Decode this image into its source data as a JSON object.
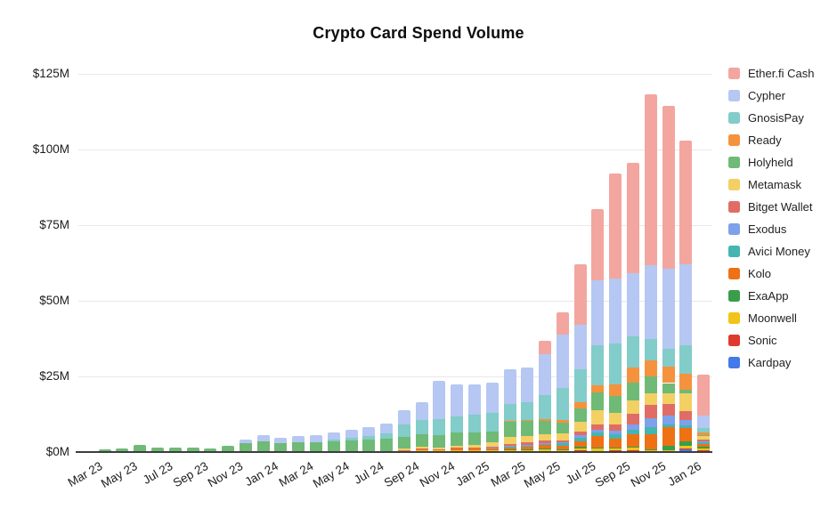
{
  "title": "Crypto Card Spend Volume",
  "chart_data": {
    "type": "bar",
    "stacked": true,
    "unit": "USD millions",
    "title": "Crypto Card Spend Volume",
    "xlabel": "",
    "ylabel": "",
    "ylim": [
      0,
      125
    ],
    "grid": true,
    "background": "#ffffff",
    "grid_color": "#e8e8e8",
    "axis_color": "#3d3d3d",
    "legend_position": "right",
    "stack_note": "series listed top-of-stack first (legend order); rendered bottom-up in reverse",
    "y_ticks": {
      "values": [
        0,
        25,
        50,
        75,
        100,
        125
      ],
      "labels": [
        "$0M",
        "$25M",
        "$50M",
        "$75M",
        "$100M",
        "$125M"
      ]
    },
    "x_tick_every": 2,
    "categories": [
      "Mar 23",
      "Apr 23",
      "May 23",
      "Jun 23",
      "Jul 23",
      "Aug 23",
      "Sep 23",
      "Oct 23",
      "Nov 23",
      "Dec 23",
      "Jan 24",
      "Feb 24",
      "Mar 24",
      "Apr 24",
      "May 24",
      "Jun 24",
      "Jul 24",
      "Aug 24",
      "Sep 24",
      "Oct 24",
      "Nov 24",
      "Dec 24",
      "Jan 25",
      "Feb 25",
      "Mar 25",
      "Apr 25",
      "May 25",
      "Jun 25",
      "Jul 25",
      "Aug 25",
      "Sep 25",
      "Oct 25",
      "Nov 25",
      "Dec 25",
      "Jan 26",
      "Feb 26"
    ],
    "series": [
      {
        "name": "Ether.fi Cash",
        "color": "#F2A69F",
        "values": [
          0,
          0,
          0,
          0,
          0,
          0,
          0,
          0,
          0,
          0,
          0,
          0,
          0,
          0,
          0,
          0,
          0,
          0,
          0,
          0,
          0,
          0,
          0,
          0,
          0,
          0,
          4.3,
          7.5,
          20,
          23.6,
          34.6,
          36.6,
          56.5,
          54,
          41,
          13.4
        ]
      },
      {
        "name": "Cypher",
        "color": "#B5C7F2",
        "values": [
          0,
          0,
          0,
          0,
          0,
          0,
          0,
          0,
          0,
          1.2,
          2.1,
          1.8,
          2,
          2.3,
          2.6,
          2.8,
          3,
          3.2,
          4.7,
          6,
          12.5,
          10.5,
          10,
          10,
          11.5,
          11.2,
          13.5,
          17.5,
          14.5,
          21.4,
          21.5,
          20.7,
          24.4,
          26.5,
          26.8,
          4.1
        ]
      },
      {
        "name": "GnosisPay",
        "color": "#82CCC9",
        "values": [
          0,
          0,
          0,
          0,
          0,
          0,
          0,
          0,
          0,
          0,
          0,
          0,
          0,
          0,
          0.4,
          0.8,
          1.2,
          1.8,
          4.1,
          4.7,
          5.5,
          5.5,
          5.8,
          6,
          5.5,
          6,
          8,
          10.5,
          11,
          13.2,
          13.7,
          10.5,
          7,
          5.9,
          9.4,
          1.5
        ]
      },
      {
        "name": "Ready",
        "color": "#F5923E",
        "values": [
          0,
          0,
          0,
          0,
          0,
          0,
          0,
          0,
          0,
          0,
          0,
          0,
          0,
          0,
          0,
          0,
          0,
          0,
          0,
          0,
          0,
          0,
          0,
          0,
          0.3,
          0.4,
          0.5,
          1,
          2.1,
          2.4,
          3.9,
          4.9,
          5.3,
          5.3,
          5.3,
          0.9
        ]
      },
      {
        "name": "Holyheld",
        "color": "#6FBA76",
        "values": [
          0.4,
          0.8,
          1.2,
          2.3,
          1.4,
          1.4,
          1.5,
          1.3,
          2,
          3,
          3.4,
          3,
          3.2,
          3.3,
          3.6,
          3.8,
          4,
          4.2,
          3.8,
          4,
          4,
          4.2,
          4,
          3.8,
          5,
          4.8,
          4.6,
          3.5,
          4.5,
          5.9,
          5.4,
          5.9,
          5.6,
          3.5,
          1,
          0.3
        ]
      },
      {
        "name": "Metamask",
        "color": "#F2D063",
        "values": [
          0,
          0,
          0,
          0,
          0,
          0,
          0,
          0,
          0,
          0,
          0,
          0,
          0,
          0,
          0,
          0,
          0,
          0.2,
          0.6,
          0.6,
          0.5,
          0.8,
          1,
          1.2,
          2.4,
          2.2,
          1.8,
          2.5,
          3,
          4.9,
          3.8,
          4.4,
          3.8,
          3.5,
          5.9,
          1.2
        ]
      },
      {
        "name": "Bitget Wallet",
        "color": "#E06D65",
        "values": [
          0,
          0,
          0,
          0,
          0,
          0,
          0,
          0,
          0,
          0,
          0,
          0,
          0,
          0,
          0,
          0,
          0,
          0,
          0.2,
          0.2,
          0.2,
          0.3,
          0.3,
          0.3,
          0.4,
          0.7,
          0.9,
          0.6,
          1.2,
          1.5,
          2,
          3.4,
          4.4,
          3.8,
          2.9,
          0.5
        ]
      },
      {
        "name": "Exodus",
        "color": "#7DA1EA",
        "values": [
          0,
          0,
          0,
          0,
          0,
          0,
          0,
          0,
          0,
          0,
          0,
          0,
          0,
          0,
          0,
          0,
          0,
          0,
          0,
          0,
          0,
          0,
          0,
          0.2,
          0.2,
          0.2,
          0.3,
          0.3,
          0.9,
          1,
          1.2,
          1.9,
          2.9,
          2.9,
          1.8,
          0.4
        ]
      },
      {
        "name": "Avici Money",
        "color": "#45B5B1",
        "values": [
          0,
          0,
          0,
          0,
          0,
          0,
          0,
          0,
          0,
          0,
          0,
          0,
          0,
          0,
          0,
          0,
          0,
          0,
          0,
          0,
          0,
          0,
          0,
          0,
          0.4,
          0.5,
          0.4,
          0.8,
          1.2,
          1.2,
          1.5,
          1.5,
          2.4,
          1,
          1,
          0.5
        ]
      },
      {
        "name": "Kolo",
        "color": "#EE7214",
        "values": [
          0,
          0,
          0,
          0,
          0,
          0,
          0,
          0,
          0,
          0,
          0,
          0,
          0,
          0,
          0,
          0,
          0,
          0,
          0.3,
          0.4,
          0.3,
          0.5,
          0.6,
          0.8,
          0.8,
          0.9,
          1.2,
          1,
          1.9,
          3.9,
          2.9,
          3.9,
          5,
          5.9,
          4.4,
          1
        ]
      },
      {
        "name": "ExaApp",
        "color": "#389E4A",
        "values": [
          0,
          0,
          0,
          0,
          0,
          0,
          0,
          0,
          0,
          0,
          0,
          0,
          0,
          0,
          0,
          0,
          0,
          0,
          0,
          0,
          0,
          0,
          0,
          0,
          0.1,
          0.2,
          0.4,
          0.3,
          0.5,
          0.3,
          0.3,
          0.5,
          0.3,
          1.5,
          1.5,
          0.4
        ]
      },
      {
        "name": "Moonwell",
        "color": "#F2C318",
        "values": [
          0,
          0,
          0,
          0,
          0,
          0,
          0,
          0,
          0,
          0,
          0,
          0,
          0,
          0,
          0,
          0,
          0,
          0,
          0.2,
          0.3,
          0.2,
          0.3,
          0.3,
          0.3,
          0.4,
          0.4,
          0.5,
          0.4,
          0.7,
          0.8,
          0.8,
          0.9,
          0.3,
          0.3,
          0.8,
          0.6
        ]
      },
      {
        "name": "Sonic",
        "color": "#DE3A2E",
        "values": [
          0,
          0,
          0,
          0,
          0,
          0,
          0,
          0,
          0,
          0,
          0,
          0,
          0,
          0,
          0,
          0,
          0,
          0,
          0,
          0.3,
          0.3,
          0.3,
          0.3,
          0.3,
          0.3,
          0.2,
          0.15,
          0.2,
          0.3,
          0.2,
          0.3,
          0.3,
          0.2,
          0.2,
          0.3,
          0.15
        ]
      },
      {
        "name": "Kardpay",
        "color": "#4379E8",
        "values": [
          0,
          0,
          0,
          0,
          0,
          0,
          0,
          0,
          0,
          0,
          0,
          0,
          0,
          0,
          0,
          0,
          0,
          0,
          0,
          0,
          0,
          0,
          0,
          0,
          0,
          0.1,
          0.1,
          0.1,
          0.2,
          0.1,
          0.2,
          0.2,
          0.1,
          0.2,
          0.9,
          0.5
        ]
      }
    ]
  }
}
